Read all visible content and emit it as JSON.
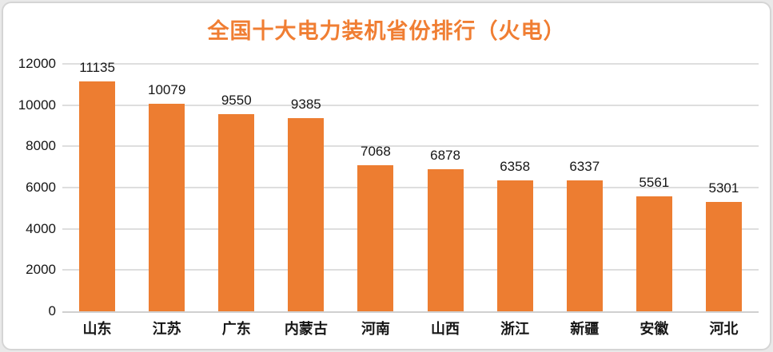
{
  "chart_data": {
    "type": "bar",
    "title": "全国十大电力装机省份排行（火电）",
    "categories": [
      "山东",
      "江苏",
      "广东",
      "内蒙古",
      "河南",
      "山西",
      "浙江",
      "新疆",
      "安徽",
      "河北"
    ],
    "values": [
      11135,
      10079,
      9550,
      9385,
      7068,
      6878,
      6358,
      6337,
      5561,
      5301
    ],
    "xlabel": "",
    "ylabel": "",
    "ylim": [
      0,
      12000
    ],
    "yticks": [
      0,
      2000,
      4000,
      6000,
      8000,
      10000,
      12000
    ],
    "grid": "horizontal",
    "legend": "none",
    "data_labels": "outside-end",
    "colors": {
      "bar": "#ED7D31",
      "title": "#F07E33",
      "gridline": "#DEDEDE",
      "axis_line": "#D0D0D0",
      "text": "#161616",
      "card_background": "#FFFFFF",
      "card_border": "#D5D5D5"
    }
  }
}
